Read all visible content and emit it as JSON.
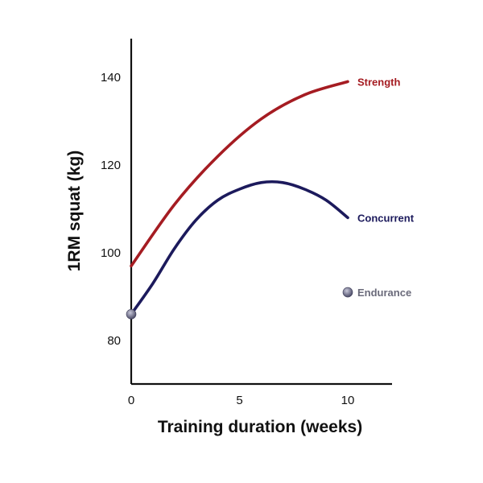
{
  "chart_data": {
    "type": "line",
    "title": "",
    "xlabel": "Training duration (weeks)",
    "ylabel": "1RM squat (kg)",
    "xlim": [
      0,
      12
    ],
    "ylim": [
      70,
      148
    ],
    "x_ticks": [
      0,
      5,
      10
    ],
    "y_ticks": [
      80,
      100,
      120,
      140
    ],
    "grid": false,
    "series": [
      {
        "name": "Strength",
        "color": "#a51c22",
        "x": [
          0,
          2,
          4,
          6,
          8,
          10
        ],
        "y": [
          97,
          111,
          122,
          130.5,
          136,
          139
        ]
      },
      {
        "name": "Concurrent",
        "color": "#1c1a5c",
        "x": [
          0,
          1,
          2,
          3,
          4,
          5,
          6,
          7,
          8,
          9,
          10
        ],
        "y": [
          86,
          93,
          101,
          107.5,
          112,
          114.5,
          116,
          116,
          114.5,
          112,
          108
        ]
      },
      {
        "name": "Endurance",
        "type": "scatter",
        "color": "#6a6a86",
        "x": [
          0,
          10
        ],
        "y": [
          86,
          91
        ]
      }
    ]
  }
}
